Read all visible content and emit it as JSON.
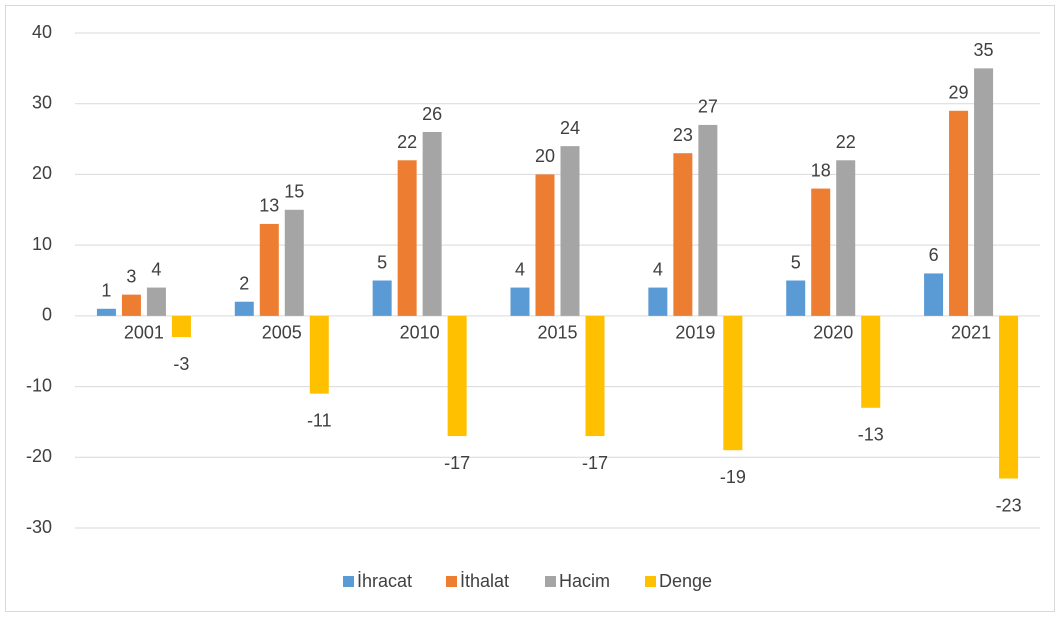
{
  "chart_data": {
    "type": "bar",
    "categories": [
      "2001",
      "2005",
      "2010",
      "2015",
      "2019",
      "2020",
      "2021"
    ],
    "series": [
      {
        "name": "İhracat",
        "color": "#5b9bd5",
        "values": [
          1,
          2,
          5,
          4,
          4,
          5,
          6
        ]
      },
      {
        "name": "İthalat",
        "color": "#ed7d31",
        "values": [
          3,
          13,
          22,
          20,
          23,
          18,
          29
        ]
      },
      {
        "name": "Hacim",
        "color": "#a5a5a5",
        "values": [
          4,
          15,
          26,
          24,
          27,
          22,
          35
        ]
      },
      {
        "name": "Denge",
        "color": "#ffc000",
        "values": [
          -3,
          -11,
          -17,
          -17,
          -19,
          -13,
          -23
        ]
      }
    ],
    "ylim": [
      -30,
      40
    ],
    "yticks": [
      -30,
      -20,
      -10,
      0,
      10,
      20,
      30,
      40
    ],
    "grid": true,
    "legend": "bottom"
  }
}
